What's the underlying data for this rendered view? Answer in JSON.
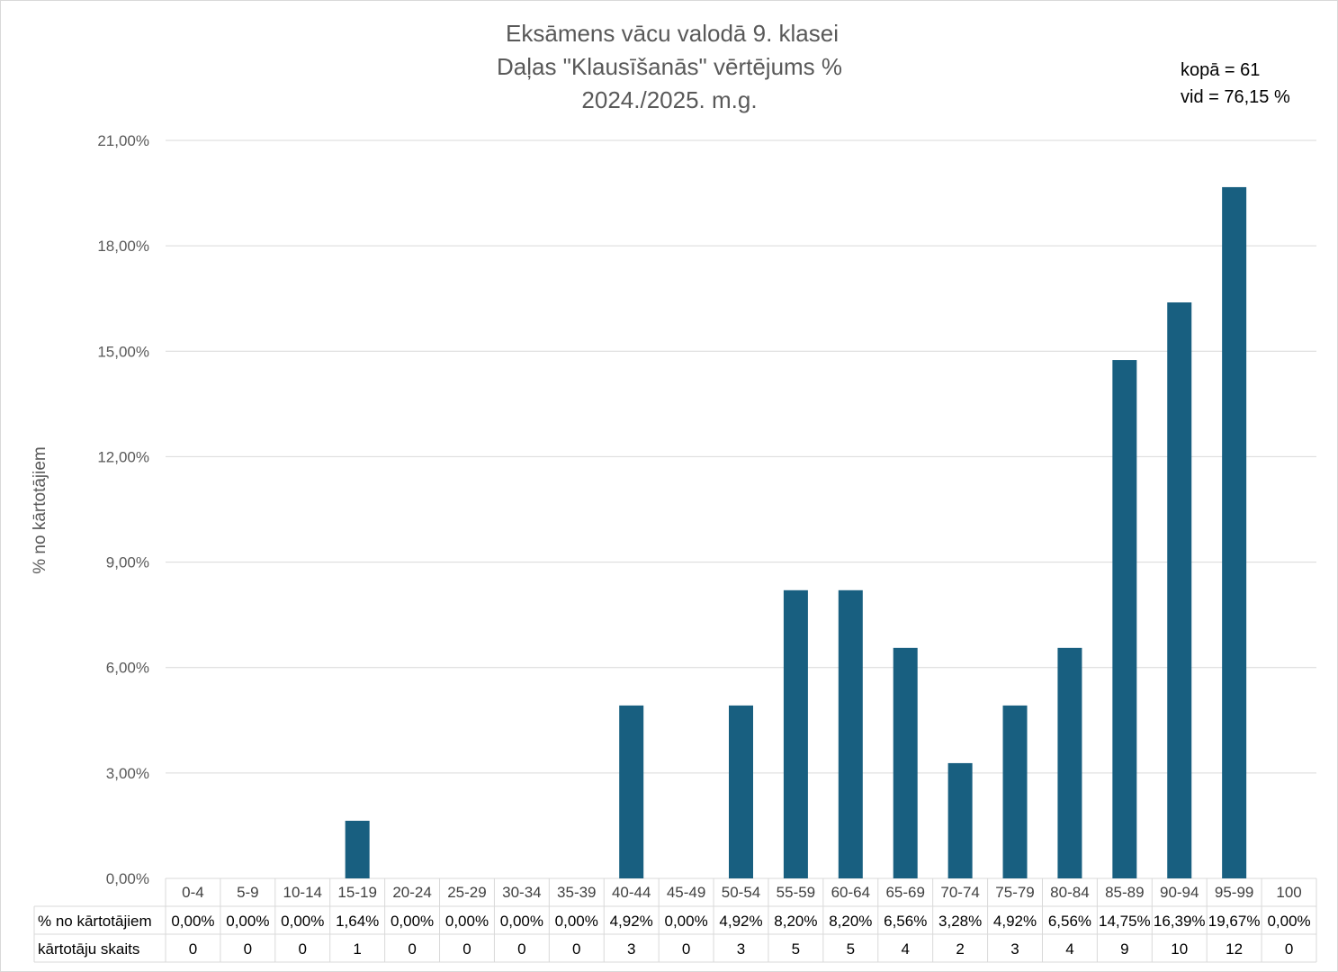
{
  "chart_data": {
    "type": "bar",
    "title": [
      "Eksāmens vācu valodā 9. klasei",
      "Daļas \"Klausīšanās\" vērtējums %",
      "2024./2025. m.g."
    ],
    "ylabel": "% no kārtotājiem",
    "ylim": [
      0,
      21
    ],
    "yticks": [
      "0,00%",
      "3,00%",
      "6,00%",
      "9,00%",
      "12,00%",
      "15,00%",
      "18,00%",
      "21,00%"
    ],
    "grid": true,
    "colors": {
      "bar": "#185f80",
      "grid": "#d9d9d9"
    },
    "annotations": [
      "kopā = 61",
      "vid = 76,15 %"
    ],
    "categories": [
      "0-4",
      "5-9",
      "10-14",
      "15-19",
      "20-24",
      "25-29",
      "30-34",
      "35-39",
      "40-44",
      "45-49",
      "50-54",
      "55-59",
      "60-64",
      "65-69",
      "70-74",
      "75-79",
      "80-84",
      "85-89",
      "90-94",
      "95-99",
      "100"
    ],
    "values": [
      0,
      0,
      0,
      1.64,
      0,
      0,
      0,
      0,
      4.92,
      0,
      4.92,
      8.2,
      8.2,
      6.56,
      3.28,
      4.92,
      6.56,
      14.75,
      16.39,
      19.67,
      0
    ],
    "table": {
      "rows": [
        {
          "label": "% no kārtotājiem",
          "cells": [
            "0,00%",
            "0,00%",
            "0,00%",
            "1,64%",
            "0,00%",
            "0,00%",
            "0,00%",
            "0,00%",
            "4,92%",
            "0,00%",
            "4,92%",
            "8,20%",
            "8,20%",
            "6,56%",
            "3,28%",
            "4,92%",
            "6,56%",
            "14,75%",
            "16,39%",
            "19,67%",
            "0,00%"
          ]
        },
        {
          "label": "kārtotāju skaits",
          "cells": [
            "0",
            "0",
            "0",
            "1",
            "0",
            "0",
            "0",
            "0",
            "3",
            "0",
            "3",
            "5",
            "5",
            "4",
            "2",
            "3",
            "4",
            "9",
            "10",
            "12",
            "0"
          ]
        }
      ]
    }
  }
}
